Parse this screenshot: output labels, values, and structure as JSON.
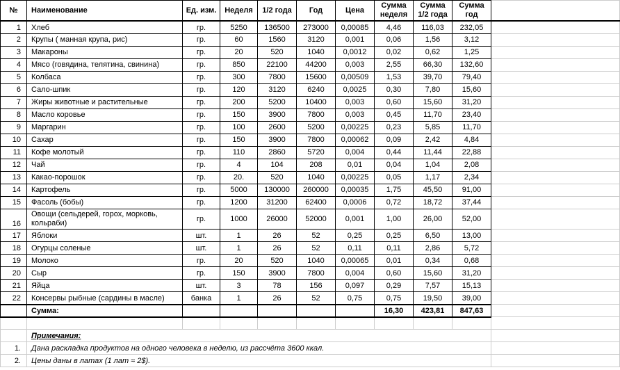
{
  "headers": {
    "num": "№",
    "name": "Наименование",
    "unit": "Ед. изм.",
    "week": "Неделя",
    "half": "1/2 года",
    "year": "Год",
    "price": "Цена",
    "sum_week": "Сумма неделя",
    "sum_half": "Сумма 1/2 года",
    "sum_year": "Сумма год"
  },
  "rows": [
    {
      "num": "1",
      "name": "Хлеб",
      "unit": "гр.",
      "week": "5250",
      "half": "136500",
      "year": "273000",
      "price": "0,00085",
      "sw": "4,46",
      "sh": "116,03",
      "sy": "232,05"
    },
    {
      "num": "2",
      "name": "Крупы ( манная крупа, рис)",
      "unit": "гр.",
      "week": "60",
      "half": "1560",
      "year": "3120",
      "price": "0,001",
      "sw": "0,06",
      "sh": "1,56",
      "sy": "3,12"
    },
    {
      "num": "3",
      "name": "Макароны",
      "unit": "гр.",
      "week": "20",
      "half": "520",
      "year": "1040",
      "price": "0,0012",
      "sw": "0,02",
      "sh": "0,62",
      "sy": "1,25"
    },
    {
      "num": "4",
      "name": "Мясо (говядина, телятина, свинина)",
      "unit": "гр.",
      "week": "850",
      "half": "22100",
      "year": "44200",
      "price": "0,003",
      "sw": "2,55",
      "sh": "66,30",
      "sy": "132,60"
    },
    {
      "num": "5",
      "name": "Колбаса",
      "unit": "гр.",
      "week": "300",
      "half": "7800",
      "year": "15600",
      "price": "0,00509",
      "sw": "1,53",
      "sh": "39,70",
      "sy": "79,40"
    },
    {
      "num": "6",
      "name": "Сало-шпик",
      "unit": "гр.",
      "week": "120",
      "half": "3120",
      "year": "6240",
      "price": "0,0025",
      "sw": "0,30",
      "sh": "7,80",
      "sy": "15,60"
    },
    {
      "num": "7",
      "name": "Жиры животные и растительные",
      "unit": "гр.",
      "week": "200",
      "half": "5200",
      "year": "10400",
      "price": "0,003",
      "sw": "0,60",
      "sh": "15,60",
      "sy": "31,20"
    },
    {
      "num": "8",
      "name": "Масло коровье",
      "unit": "гр.",
      "week": "150",
      "half": "3900",
      "year": "7800",
      "price": "0,003",
      "sw": "0,45",
      "sh": "11,70",
      "sy": "23,40"
    },
    {
      "num": "9",
      "name": "Маргарин",
      "unit": "гр.",
      "week": "100",
      "half": "2600",
      "year": "5200",
      "price": "0,00225",
      "sw": "0,23",
      "sh": "5,85",
      "sy": "11,70"
    },
    {
      "num": "10",
      "name": "Сахар",
      "unit": "гр.",
      "week": "150",
      "half": "3900",
      "year": "7800",
      "price": "0,00062",
      "sw": "0,09",
      "sh": "2,42",
      "sy": "4,84"
    },
    {
      "num": "11",
      "name": "Кофе молотый",
      "unit": "гр.",
      "week": "110",
      "half": "2860",
      "year": "5720",
      "price": "0,004",
      "sw": "0,44",
      "sh": "11,44",
      "sy": "22,88"
    },
    {
      "num": "12",
      "name": "Чай",
      "unit": "гр.",
      "week": "4",
      "half": "104",
      "year": "208",
      "price": "0,01",
      "sw": "0,04",
      "sh": "1,04",
      "sy": "2,08"
    },
    {
      "num": "13",
      "name": "Какао-порошок",
      "unit": "гр.",
      "week": "20.",
      "half": "520",
      "year": "1040",
      "price": "0,00225",
      "sw": "0,05",
      "sh": "1,17",
      "sy": "2,34"
    },
    {
      "num": "14",
      "name": "Картофель",
      "unit": "гр.",
      "week": "5000",
      "half": "130000",
      "year": "260000",
      "price": "0,00035",
      "sw": "1,75",
      "sh": "45,50",
      "sy": "91,00"
    },
    {
      "num": "15",
      "name": "Фасоль (бобы)",
      "unit": "гр.",
      "week": "1200",
      "half": "31200",
      "year": "62400",
      "price": "0,0006",
      "sw": "0,72",
      "sh": "18,72",
      "sy": "37,44"
    },
    {
      "num": "16",
      "name": "Овощи (сельдерей, горох, морковь, кольраби)",
      "unit": "гр.",
      "week": "1000",
      "half": "26000",
      "year": "52000",
      "price": "0,001",
      "sw": "1,00",
      "sh": "26,00",
      "sy": "52,00",
      "multiline": true
    },
    {
      "num": "17",
      "name": "Яблоки",
      "unit": "шт.",
      "week": "1",
      "half": "26",
      "year": "52",
      "price": "0,25",
      "sw": "0,25",
      "sh": "6,50",
      "sy": "13,00"
    },
    {
      "num": "18",
      "name": "Огурцы соленые",
      "unit": "шт.",
      "week": "1",
      "half": "26",
      "year": "52",
      "price": "0,11",
      "sw": "0,11",
      "sh": "2,86",
      "sy": "5,72"
    },
    {
      "num": "19",
      "name": "Молоко",
      "unit": "гр.",
      "week": "20",
      "half": "520",
      "year": "1040",
      "price": "0,00065",
      "sw": "0,01",
      "sh": "0,34",
      "sy": "0,68"
    },
    {
      "num": "20",
      "name": "Сыр",
      "unit": "гр.",
      "week": "150",
      "half": "3900",
      "year": "7800",
      "price": "0,004",
      "sw": "0,60",
      "sh": "15,60",
      "sy": "31,20"
    },
    {
      "num": "21",
      "name": "Яйца",
      "unit": "шт.",
      "week": "3",
      "half": "78",
      "year": "156",
      "price": "0,097",
      "sw": "0,29",
      "sh": "7,57",
      "sy": "15,13"
    },
    {
      "num": "22",
      "name": "Консервы рыбные (сардины в масле)",
      "unit": "банка",
      "week": "1",
      "half": "26",
      "year": "52",
      "price": "0,75",
      "sw": "0,75",
      "sh": "19,50",
      "sy": "39,00"
    }
  ],
  "totals": {
    "label": "Сумма:",
    "sw": "16,30",
    "sh": "423,81",
    "sy": "847,63"
  },
  "notes": {
    "title": "Примечания:",
    "items": [
      {
        "num": "1.",
        "text": "Дана раскладка продуктов на одного человека в неделю, из рассчёта 3600 ккал."
      },
      {
        "num": "2.",
        "text": "Цены даны в латах (1 лат ≈ 2$)."
      }
    ]
  }
}
